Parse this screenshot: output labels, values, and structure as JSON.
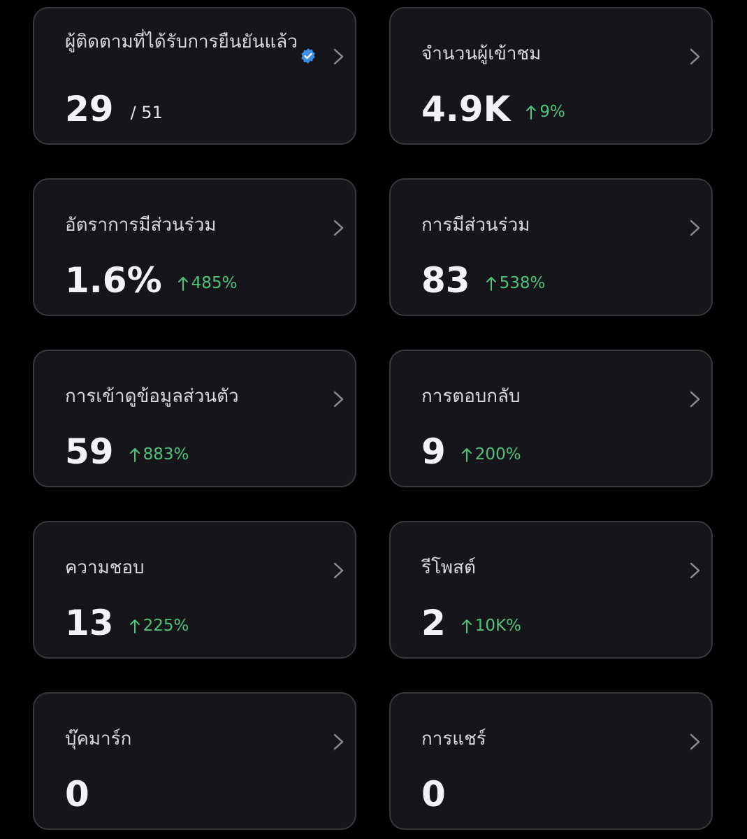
{
  "cards": [
    {
      "title": "ผู้ติดตามที่ได้รับการยืนยันแล้ว",
      "value": "29",
      "total": "/ 51"
    },
    {
      "title": "จำนวนผู้เข้าชม",
      "value": "4.9K",
      "change": "9%"
    },
    {
      "title": "อัตราการมีส่วนร่วม",
      "value": "1.6%",
      "change": "485%"
    },
    {
      "title": "การมีส่วนร่วม",
      "value": "83",
      "change": "538%"
    },
    {
      "title": "การเข้าดูข้อมูลส่วนตัว",
      "value": "59",
      "change": "883%"
    },
    {
      "title": "การตอบกลับ",
      "value": "9",
      "change": "200%"
    },
    {
      "title": "ความชอบ",
      "value": "13",
      "change": "225%"
    },
    {
      "title": "รีโพสต์",
      "value": "2",
      "change": "10K%"
    },
    {
      "title": "บุ๊คมาร์ก",
      "value": "0"
    },
    {
      "title": "การแชร์",
      "value": "0"
    }
  ]
}
